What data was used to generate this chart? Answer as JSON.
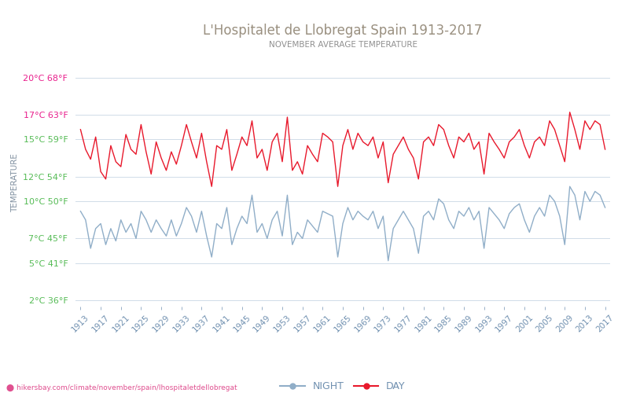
{
  "title": "L'Hospitalet de Llobregat Spain 1913-2017",
  "subtitle": "NOVEMBER AVERAGE TEMPERATURE",
  "title_color": "#9a9080",
  "subtitle_color": "#909090",
  "ylabel": "TEMPERATURE",
  "year_start": 1913,
  "year_end": 2017,
  "yticks_celsius": [
    2,
    5,
    7,
    10,
    12,
    15,
    17,
    20
  ],
  "yticks_fahrenheit": [
    36,
    41,
    45,
    50,
    54,
    59,
    63,
    68
  ],
  "xtick_years": [
    1913,
    1917,
    1921,
    1925,
    1929,
    1933,
    1937,
    1941,
    1945,
    1949,
    1953,
    1957,
    1961,
    1965,
    1969,
    1973,
    1977,
    1981,
    1985,
    1989,
    1993,
    1997,
    2001,
    2005,
    2009,
    2013,
    2017
  ],
  "ylim": [
    1.5,
    21.5
  ],
  "day_color": "#e8192c",
  "night_color": "#90aec8",
  "grid_color": "#d0dce8",
  "background_color": "#ffffff",
  "legend_night": "NIGHT",
  "legend_day": "DAY",
  "watermark": "hikersbay.com/climate/november/spain/lhospitaletdellobregat",
  "day_values": [
    15.8,
    14.2,
    13.4,
    15.2,
    12.4,
    11.8,
    14.5,
    13.2,
    12.8,
    15.4,
    14.2,
    13.8,
    16.2,
    14.0,
    12.2,
    14.8,
    13.5,
    12.5,
    14.0,
    13.0,
    14.5,
    16.2,
    14.8,
    13.5,
    15.5,
    13.2,
    11.2,
    14.5,
    14.2,
    15.8,
    12.5,
    13.8,
    15.2,
    14.5,
    16.5,
    13.5,
    14.2,
    12.5,
    14.8,
    15.5,
    13.2,
    16.8,
    12.5,
    13.2,
    12.2,
    14.5,
    13.8,
    13.2,
    15.5,
    15.2,
    14.8,
    11.2,
    14.5,
    15.8,
    14.2,
    15.5,
    14.8,
    14.5,
    15.2,
    13.5,
    14.8,
    11.5,
    13.8,
    14.5,
    15.2,
    14.2,
    13.5,
    11.8,
    14.8,
    15.2,
    14.5,
    16.2,
    15.8,
    14.5,
    13.5,
    15.2,
    14.8,
    15.5,
    14.2,
    14.8,
    12.2,
    15.5,
    14.8,
    14.2,
    13.5,
    14.8,
    15.2,
    15.8,
    14.5,
    13.5,
    14.8,
    15.2,
    14.5,
    16.5,
    15.8,
    14.5,
    13.2,
    17.2,
    15.8,
    14.2,
    16.5,
    15.8,
    16.5,
    16.2,
    14.2
  ],
  "night_values": [
    9.2,
    8.5,
    6.2,
    7.8,
    8.2,
    6.5,
    7.8,
    6.8,
    8.5,
    7.5,
    8.2,
    7.0,
    9.2,
    8.5,
    7.5,
    8.5,
    7.8,
    7.2,
    8.5,
    7.2,
    8.2,
    9.5,
    8.8,
    7.5,
    9.2,
    7.2,
    5.5,
    8.2,
    7.8,
    9.5,
    6.5,
    7.8,
    8.8,
    8.2,
    10.5,
    7.5,
    8.2,
    7.0,
    8.5,
    9.2,
    7.2,
    10.5,
    6.5,
    7.5,
    7.0,
    8.5,
    8.0,
    7.5,
    9.2,
    9.0,
    8.8,
    5.5,
    8.2,
    9.5,
    8.5,
    9.2,
    8.8,
    8.5,
    9.2,
    7.8,
    8.8,
    5.2,
    7.8,
    8.5,
    9.2,
    8.5,
    7.8,
    5.8,
    8.8,
    9.2,
    8.5,
    10.2,
    9.8,
    8.5,
    7.8,
    9.2,
    8.8,
    9.5,
    8.5,
    9.2,
    6.2,
    9.5,
    9.0,
    8.5,
    7.8,
    9.0,
    9.5,
    9.8,
    8.5,
    7.5,
    8.8,
    9.5,
    8.8,
    10.5,
    10.0,
    8.8,
    6.5,
    11.2,
    10.5,
    8.5,
    10.8,
    10.0,
    10.8,
    10.5,
    9.5
  ]
}
